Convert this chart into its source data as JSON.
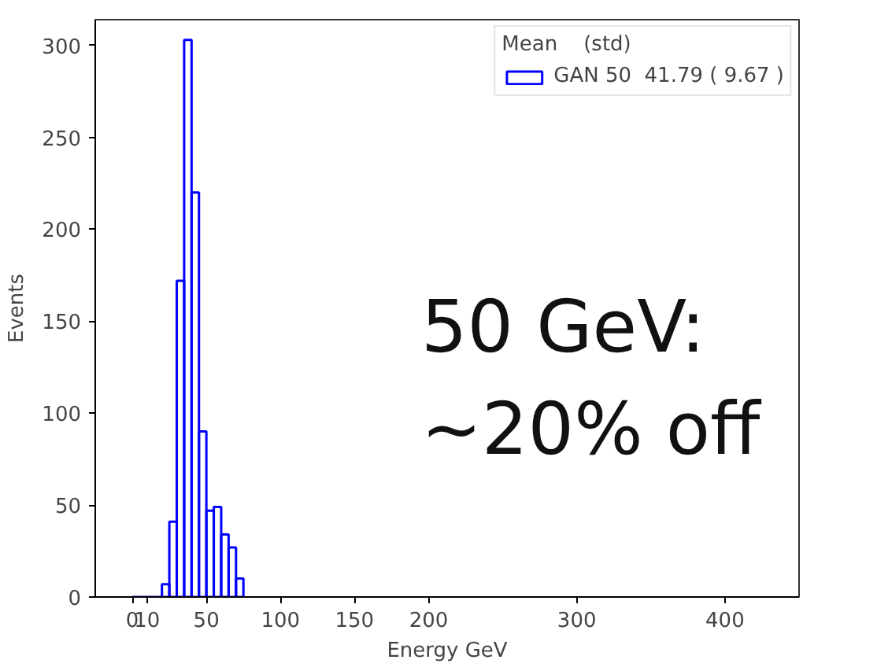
{
  "chart_data": [
    {
      "type": "histogram",
      "xlabel": "Energy GeV",
      "ylabel": "Events",
      "xlim": [
        -25,
        450
      ],
      "ylim": [
        0,
        314
      ],
      "xticks": [
        0,
        10,
        50,
        100,
        150,
        200,
        300,
        400
      ],
      "yticks": [
        0,
        50,
        100,
        150,
        200,
        250,
        300
      ],
      "bins": [
        0,
        20,
        25,
        30,
        35,
        40,
        45,
        50,
        55,
        60,
        65,
        70,
        75
      ],
      "series": [
        {
          "name": "GAN 50  41.79 ( 9.67 )",
          "color": "#0000ff",
          "values": [
            0,
            7,
            41,
            172,
            303,
            220,
            90,
            47,
            49,
            34,
            27,
            10
          ]
        }
      ],
      "legend": "top right",
      "legend_title": "Mean    (std)",
      "annotations": [
        "50 GeV:\n~20% off"
      ]
    }
  ]
}
